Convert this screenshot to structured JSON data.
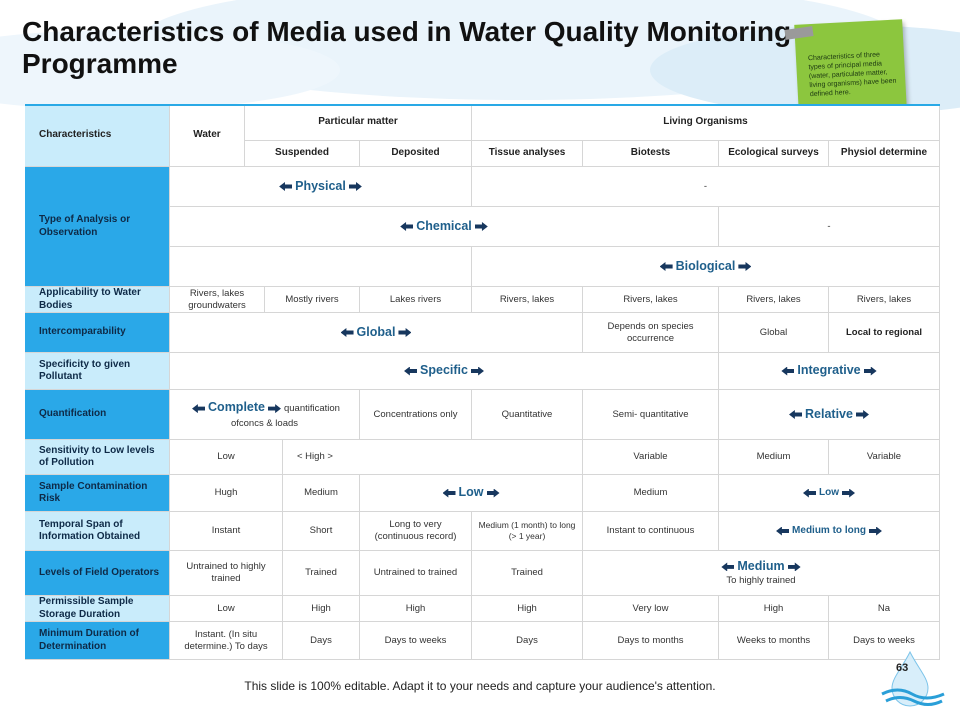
{
  "header": {
    "title": "Characteristics of Media used in Water Quality Monitoring Programme"
  },
  "note": "Characteristics of three types of principal media (water, particulate matter, living organisms) have been defined here.",
  "table": {
    "head": {
      "characteristics": "Characteristics",
      "water": "Water",
      "particular_matter": "Particular matter",
      "living_organisms": "Living Organisms",
      "sub": [
        "Suspended",
        "Deposited",
        "Tissue analyses",
        "Biotests",
        "Ecological surveys",
        "Physiol determine"
      ]
    },
    "rows": [
      {
        "label": "Type of Analysis or Observation",
        "cells": [
          "Physical",
          "-",
          "Chemical",
          "-",
          "Biological"
        ]
      },
      {
        "label": "Applicability to Water Bodies",
        "cells": [
          "Rivers, lakes groundwaters",
          "Mostly rivers",
          "Lakes rivers",
          "Rivers, lakes",
          "Rivers, lakes",
          "Rivers, lakes",
          "Rivers, lakes"
        ]
      },
      {
        "label": "Intercomparability",
        "cells": [
          "Global",
          "Depends on species occurrence",
          "Global",
          "Local to regional"
        ]
      },
      {
        "label": "Specificity to given Pollutant",
        "cells": [
          "Specific",
          "Integrative"
        ]
      },
      {
        "label": "Quantification",
        "cells": [
          {
            "main": "Complete",
            "sub": "quantification ofconcs & loads"
          },
          "Concentrations only",
          "Quantitative",
          "Semi- quantitative",
          "Relative"
        ]
      },
      {
        "label": "Sensitivity to Low levels of Pollution",
        "cells": [
          "Low",
          "< High >",
          "Variable",
          "Medium",
          "Variable"
        ]
      },
      {
        "label": "Sample Contamination Risk",
        "cells": [
          "Hugh",
          "Medium",
          "Low",
          "Medium",
          "Low"
        ]
      },
      {
        "label": "Temporal Span of Information Obtained",
        "cells": [
          "Instant",
          "Short",
          "Long to very (continuous record)",
          "Medium (1 month) to long (> 1 year)",
          "Instant to continuous",
          "Medium to long"
        ]
      },
      {
        "label": "Levels of Field Operators",
        "cells": [
          "Untrained to highly trained",
          "Trained",
          "Untrained to trained",
          "Trained",
          {
            "main": "Medium",
            "sub": "To highly trained"
          }
        ]
      },
      {
        "label": "Permissible Sample Storage Duration",
        "cells": [
          "Low",
          "High",
          "High",
          "High",
          "Very low",
          "High",
          "Na"
        ]
      },
      {
        "label": "Minimum Duration of Determination",
        "cells": [
          "Instant. (In situ determine.) To days",
          "Days",
          "Days to weeks",
          "Days",
          "Days to months",
          "Weeks to months",
          "Days to weeks"
        ]
      }
    ]
  },
  "footer": "This slide is 100% editable. Adapt it to your needs and capture your audience's attention.",
  "page_number": "63"
}
